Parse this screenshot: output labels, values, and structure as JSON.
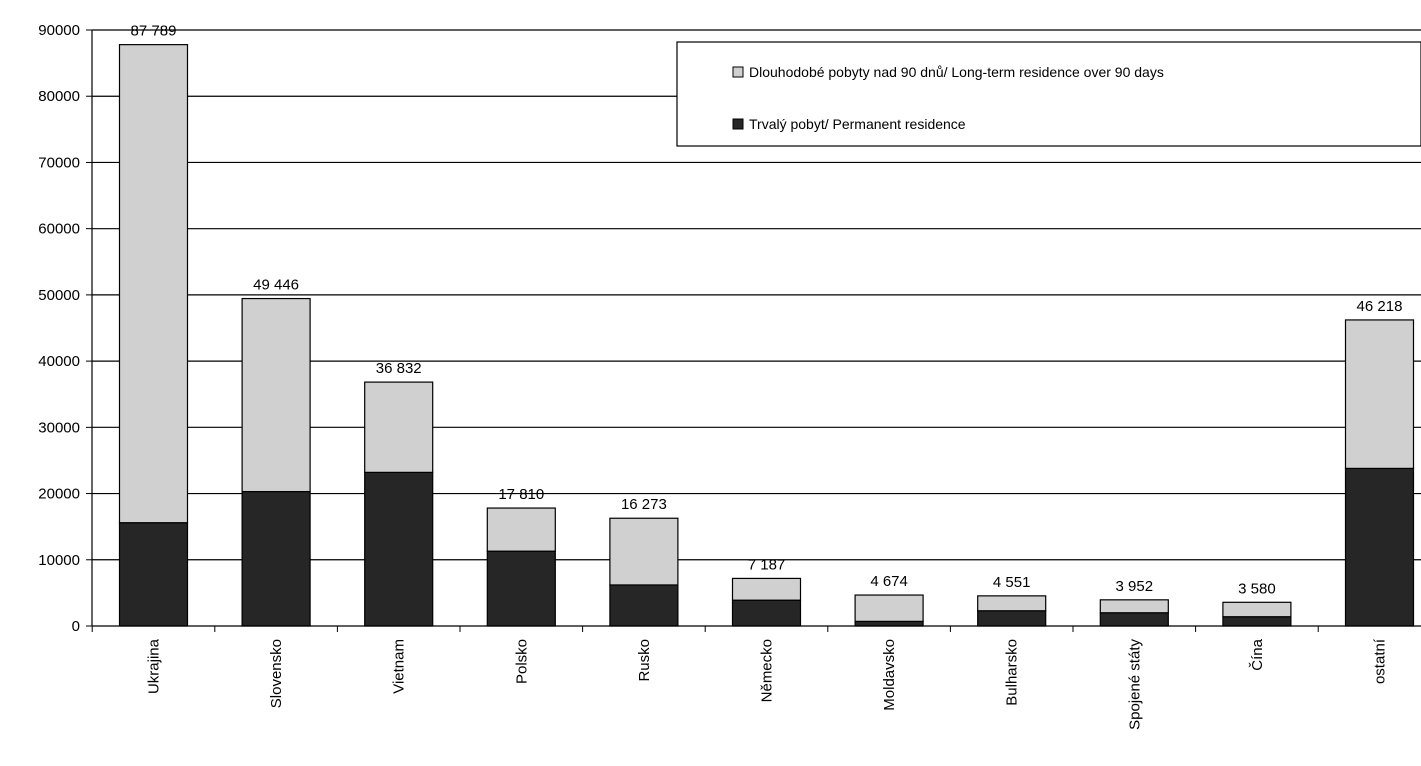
{
  "chart_data": {
    "type": "bar",
    "stacked": true,
    "categories": [
      "Ukrajina",
      "Slovensko",
      "Vietnam",
      "Polsko",
      "Rusko",
      "Německo",
      "Moldavsko",
      "Bulharsko",
      "Spojené státy",
      "Čína",
      "ostatní"
    ],
    "series": [
      {
        "name": "Trvalý pobyt/ Permanent residence",
        "color": "#262626",
        "values": [
          15600,
          20300,
          23200,
          11300,
          6200,
          3900,
          700,
          2300,
          2000,
          1400,
          23800
        ]
      },
      {
        "name": "Dlouhodobé pobyty nad 90 dnů/ Long-term residence over 90 days",
        "color": "#d0d0d0",
        "values": [
          72189,
          29146,
          13632,
          6510,
          10073,
          3287,
          3974,
          2251,
          1952,
          2180,
          22418
        ]
      }
    ],
    "totals": [
      87789,
      49446,
      36832,
      17810,
      16273,
      7187,
      4674,
      4551,
      3952,
      3580,
      46218
    ],
    "total_labels": [
      "87 789",
      "49 446",
      "36 832",
      "17 810",
      "16 273",
      "7 187",
      "4 674",
      "4 551",
      "3 952",
      "3 580",
      "46 218"
    ],
    "ylim": [
      0,
      90000
    ],
    "yticks": [
      "0",
      "10000",
      "20000",
      "30000",
      "40000",
      "50000",
      "60000",
      "70000",
      "80000",
      "90000"
    ],
    "grid": true,
    "legend_position": "top-right",
    "legend_order": [
      1,
      0
    ]
  }
}
